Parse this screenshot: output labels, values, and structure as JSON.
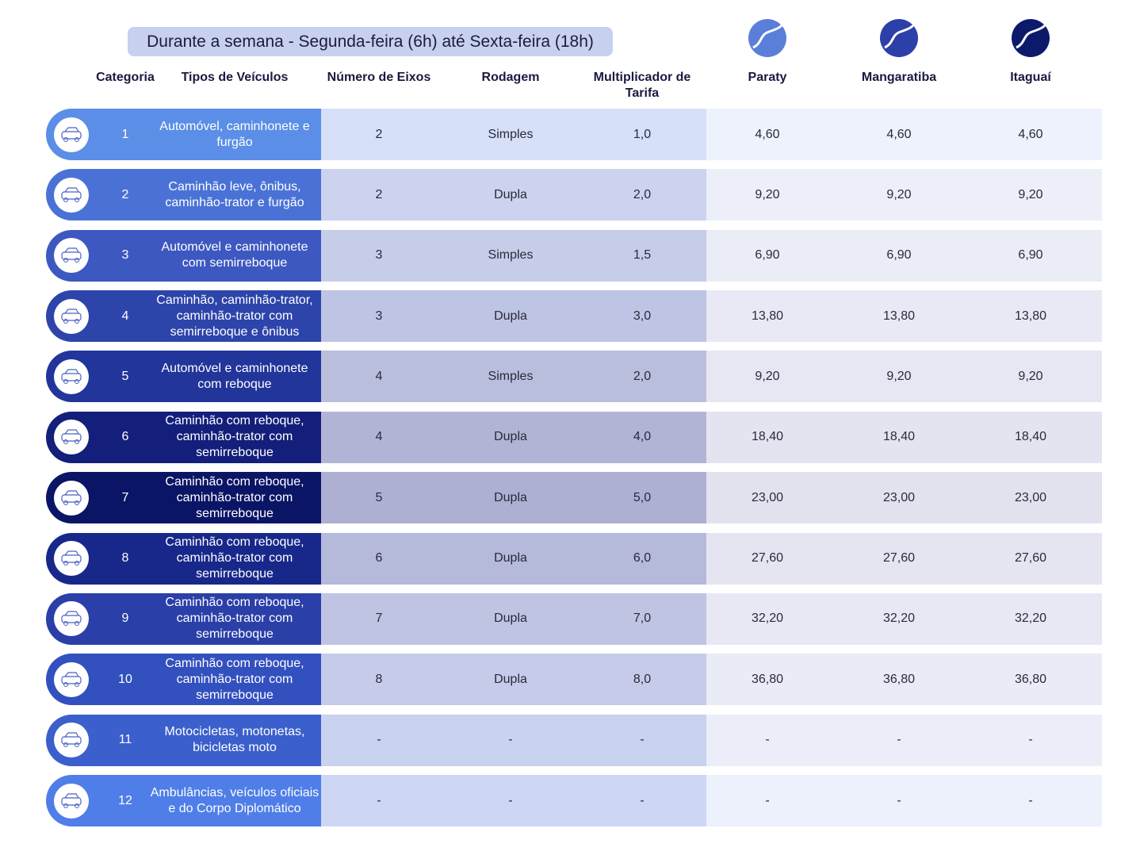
{
  "header": {
    "title": "Durante a semana - Segunda-feira (6h) até Sexta-feira (18h)"
  },
  "table": {
    "columns": [
      "Categoria",
      "Tipos de Veículos",
      "Número de Eixos",
      "Rodagem",
      "Multiplicador de Tarifa",
      "Paraty",
      "Mangaratiba",
      "Itaguaí"
    ],
    "rows": [
      [
        "1",
        "Automóvel, caminhonete e furgão",
        "2",
        "Simples",
        "1,0",
        "4,60",
        "4,60",
        "4,60"
      ],
      [
        "2",
        "Caminhão leve, ônibus, caminhão-trator e furgão",
        "2",
        "Dupla",
        "2,0",
        "9,20",
        "9,20",
        "9,20"
      ],
      [
        "3",
        "Automóvel e caminhonete com semirreboque",
        "3",
        "Simples",
        "1,5",
        "6,90",
        "6,90",
        "6,90"
      ],
      [
        "4",
        "Caminhão, caminhão-trator, caminhão-trator com semirreboque e ônibus",
        "3",
        "Dupla",
        "3,0",
        "13,80",
        "13,80",
        "13,80"
      ],
      [
        "5",
        "Automóvel e caminhonete com reboque",
        "4",
        "Simples",
        "2,0",
        "9,20",
        "9,20",
        "9,20"
      ],
      [
        "6",
        "Caminhão com reboque, caminhão-trator com semirreboque",
        "4",
        "Dupla",
        "4,0",
        "18,40",
        "18,40",
        "18,40"
      ],
      [
        "7",
        "Caminhão com reboque, caminhão-trator com semirreboque",
        "5",
        "Dupla",
        "5,0",
        "23,00",
        "23,00",
        "23,00"
      ],
      [
        "8",
        "Caminhão com reboque, caminhão-trator com semirreboque",
        "6",
        "Dupla",
        "6,0",
        "27,60",
        "27,60",
        "27,60"
      ],
      [
        "9",
        "Caminhão com reboque, caminhão-trator com semirreboque",
        "7",
        "Dupla",
        "7,0",
        "32,20",
        "32,20",
        "32,20"
      ],
      [
        "10",
        "Caminhão com reboque, caminhão-trator com semirreboque",
        "8",
        "Dupla",
        "8,0",
        "36,80",
        "36,80",
        "36,80"
      ],
      [
        "11",
        "Motocicletas, motonetas, bicicletas moto",
        "-",
        "-",
        "-",
        "-",
        "-",
        "-"
      ],
      [
        "12",
        "Ambulâncias, veículos oficiais e do Corpo Diplomático",
        "-",
        "-",
        "-",
        "-",
        "-",
        "-"
      ]
    ]
  }
}
